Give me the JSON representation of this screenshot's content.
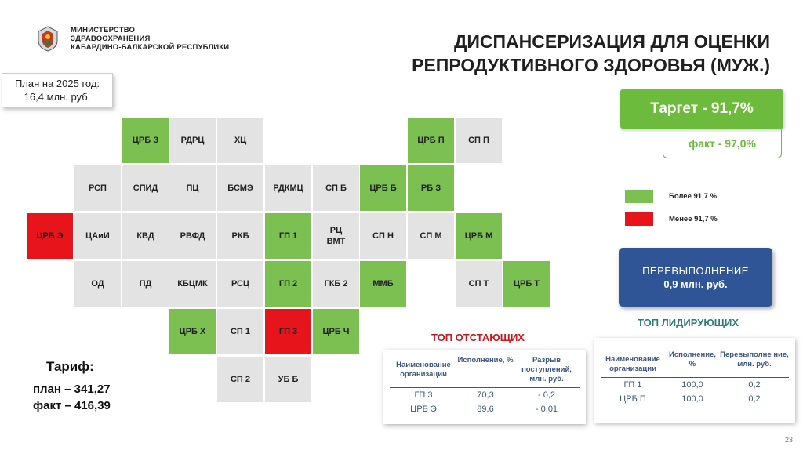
{
  "header": {
    "org_line1": "МИНИСТЕРСТВО",
    "org_line2": "ЗДРАВООХРАНЕНИЯ",
    "org_line3": "КАБАРДИНО-БАЛКАРСКОЙ РЕСПУБЛИКИ",
    "title_line1": "ДИСПАНСЕРИЗАЦИЯ ДЛЯ ОЦЕНКИ",
    "title_line2": "РЕПРОДУКТИВНОГО ЗДОРОВЬЯ (МУЖ.)"
  },
  "plan": {
    "line1": "План на 2025 год:",
    "line2": "16,4 млн. руб."
  },
  "cells": [
    {
      "label": "ЦРБ З",
      "status": "green"
    },
    {
      "label": "РДРЦ",
      "status": "grey"
    },
    {
      "label": "ХЦ",
      "status": "grey"
    },
    {
      "label": "ЦРБ П",
      "status": "green"
    },
    {
      "label": "СП П",
      "status": "grey"
    },
    {
      "label": "РСП",
      "status": "grey"
    },
    {
      "label": "СПИД",
      "status": "grey"
    },
    {
      "label": "ПЦ",
      "status": "grey"
    },
    {
      "label": "БСМЭ",
      "status": "grey"
    },
    {
      "label": "РДКМЦ",
      "status": "grey"
    },
    {
      "label": "СП Б",
      "status": "grey"
    },
    {
      "label": "ЦРБ Б",
      "status": "green"
    },
    {
      "label": "РБ З",
      "status": "green"
    },
    {
      "label": "ЦРБ Э",
      "status": "red"
    },
    {
      "label": "ЦАиИ",
      "status": "grey"
    },
    {
      "label": "КВД",
      "status": "grey"
    },
    {
      "label": "РВФД",
      "status": "grey"
    },
    {
      "label": "РКБ",
      "status": "grey"
    },
    {
      "label": "ГП 1",
      "status": "green"
    },
    {
      "label": "РЦ\nВМТ",
      "status": "grey"
    },
    {
      "label": "СП Н",
      "status": "grey"
    },
    {
      "label": "СП М",
      "status": "grey"
    },
    {
      "label": "ЦРБ М",
      "status": "green"
    },
    {
      "label": "ОД",
      "status": "grey"
    },
    {
      "label": "ПД",
      "status": "grey"
    },
    {
      "label": "КБЦМК",
      "status": "grey"
    },
    {
      "label": "РСЦ",
      "status": "grey"
    },
    {
      "label": "ГП 2",
      "status": "green"
    },
    {
      "label": "ГКБ 2",
      "status": "grey"
    },
    {
      "label": "ММБ",
      "status": "green"
    },
    {
      "label": "СП Т",
      "status": "grey"
    },
    {
      "label": "ЦРБ Т",
      "status": "green"
    },
    {
      "label": "ЦРБ Х",
      "status": "green"
    },
    {
      "label": "СП 1",
      "status": "grey"
    },
    {
      "label": "ГП 3",
      "status": "red"
    },
    {
      "label": "ЦРБ Ч",
      "status": "green"
    },
    {
      "label": "СП 2",
      "status": "grey"
    },
    {
      "label": "УБ Б",
      "status": "grey"
    }
  ],
  "target": {
    "label": "Таргет  -  91,7%",
    "fact": "факт  -  97,0%"
  },
  "legend": {
    "above": "Более 91,7 %",
    "below": "Менее 91,7 %"
  },
  "colors": {
    "green": "#7cc052",
    "red": "#e8141b",
    "grey": "#e3e3e3",
    "blue": "#2f5597",
    "table_text": "#3a5686",
    "lagging_title": "#d0121a",
    "leading_title": "#2f7a7a"
  },
  "overfulfillment": {
    "title": "ПЕРЕВЫПОЛНЕНИЕ",
    "value": "0,9 млн. руб."
  },
  "lagging": {
    "title": "ТОП ОТСТАЮЩИХ",
    "headers": [
      "Наименование организации",
      "Исполнение, %",
      "Разрыв поступлений, млн. руб."
    ],
    "rows": [
      [
        "ГП 3",
        "70,3",
        "- 0,2"
      ],
      [
        "ЦРБ Э",
        "89,6",
        "- 0,01"
      ]
    ]
  },
  "leading": {
    "title": "ТОП ЛИДИРУЮЩИХ",
    "headers": [
      "Наименование организации",
      "Исполнение, %",
      "Перевыполне ние, млн. руб."
    ],
    "rows": [
      [
        "ГП 1",
        "100,0",
        "0,2"
      ],
      [
        "ЦРБ П",
        "100,0",
        "0,2"
      ]
    ]
  },
  "tarif": {
    "title": "Тариф:",
    "plan": "план – 341,27",
    "fact": "факт – 416,39"
  },
  "page_number": "23"
}
